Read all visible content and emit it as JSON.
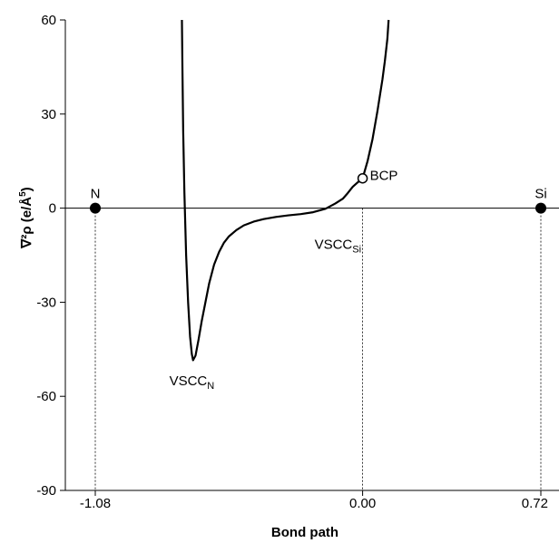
{
  "chart_data": {
    "type": "line",
    "title": "",
    "xlabel": "Bond path",
    "ylabel": {
      "main": "∇²ρ  (e/Å",
      "sup": "5",
      "end": ")"
    },
    "xlim": [
      -1.08,
      0.72
    ],
    "ylim": [
      -90,
      60
    ],
    "x_ticks": [
      {
        "value": -1.08,
        "label": "-1.08"
      },
      {
        "value": 0.0,
        "label": "0.00"
      },
      {
        "value": 0.72,
        "label": "0.72"
      }
    ],
    "y_ticks": [
      {
        "value": 60,
        "label": "60"
      },
      {
        "value": 30,
        "label": "30"
      },
      {
        "value": 0,
        "label": "0"
      },
      {
        "value": -30,
        "label": "-30"
      },
      {
        "value": -60,
        "label": "-60"
      },
      {
        "value": -90,
        "label": "-90"
      }
    ],
    "grid": false,
    "series": [
      {
        "x": [
          -0.73,
          -0.728,
          -0.725,
          -0.72,
          -0.713,
          -0.705,
          -0.697,
          -0.69,
          -0.685,
          -0.675,
          -0.663,
          -0.65,
          -0.635,
          -0.62,
          -0.6,
          -0.58,
          -0.56,
          -0.54,
          -0.51,
          -0.48,
          -0.44,
          -0.4,
          -0.35,
          -0.3,
          -0.25,
          -0.2,
          -0.15,
          -0.11,
          -0.08,
          -0.06,
          -0.04,
          -0.02,
          0.0,
          0.02,
          0.04,
          0.06,
          0.08,
          0.09,
          0.1,
          0.105
        ],
        "y": [
          60,
          45,
          25,
          5,
          -15,
          -30,
          -41,
          -46.5,
          -48.5,
          -47,
          -42,
          -36,
          -30,
          -24,
          -18,
          -14,
          -11,
          -9,
          -7,
          -5.5,
          -4.3,
          -3.5,
          -2.8,
          -2.3,
          -1.9,
          -1.3,
          -0.2,
          1.5,
          3,
          4.8,
          6.8,
          8.2,
          9.5,
          15,
          22,
          31,
          41,
          47,
          54,
          60
        ]
      }
    ],
    "points": [
      {
        "label": "N",
        "x": -1.08,
        "y": 0,
        "style": "filled"
      },
      {
        "label": "Si",
        "x": 0.72,
        "y": 0,
        "style": "filled"
      },
      {
        "label": "BCP",
        "x": 0.0,
        "y": 9.5,
        "style": "open"
      }
    ],
    "annotations": [
      {
        "main": "VSCC",
        "sub": "N",
        "x": -0.69,
        "y": -55
      },
      {
        "main": "VSCC",
        "sub": "Si",
        "x": -0.1,
        "y": -11.5
      }
    ],
    "colors": {
      "line": "#000000",
      "background": "#ffffff"
    }
  }
}
